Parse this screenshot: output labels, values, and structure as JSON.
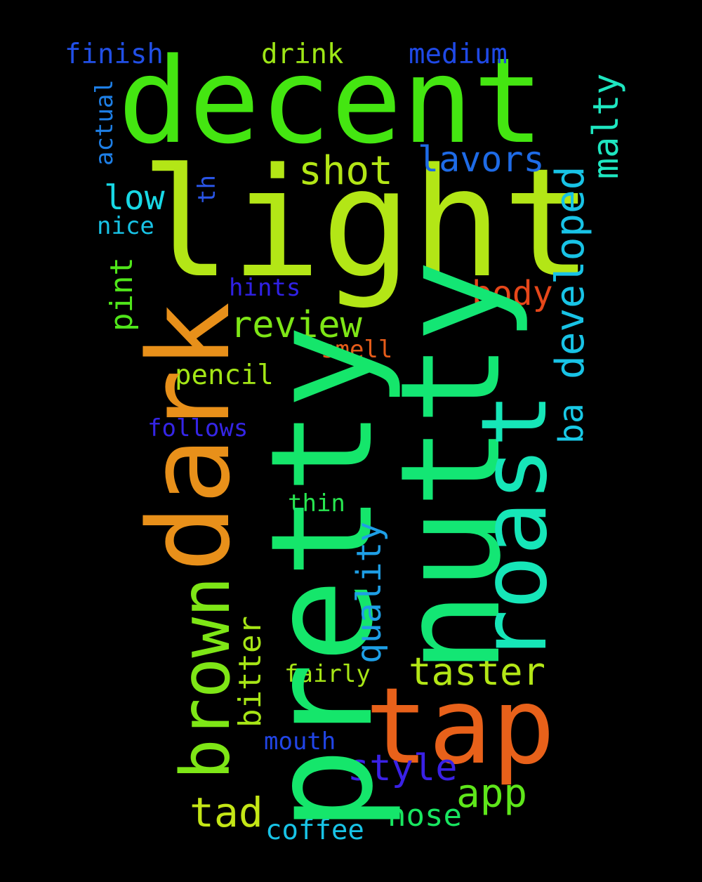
{
  "words": [
    {
      "key": "decent",
      "text": "decent",
      "color": "#44e611",
      "orientation": "horizontal"
    },
    {
      "key": "light",
      "text": "light",
      "color": "#b3e616",
      "orientation": "horizontal"
    },
    {
      "key": "pretty",
      "text": "pretty",
      "color": "#15e66b",
      "orientation": "vertical"
    },
    {
      "key": "nutty",
      "text": "nutty",
      "color": "#13e674",
      "orientation": "vertical"
    },
    {
      "key": "dark",
      "text": "dark",
      "color": "#e8901a",
      "orientation": "vertical"
    },
    {
      "key": "roast",
      "text": "roast",
      "color": "#16e6b8",
      "orientation": "vertical"
    },
    {
      "key": "tap",
      "text": "tap",
      "color": "#e8611a",
      "orientation": "horizontal"
    },
    {
      "key": "brown",
      "text": "brown",
      "color": "#7ee616",
      "orientation": "vertical"
    },
    {
      "key": "lavors",
      "text": "lavors",
      "color": "#1e6be6",
      "orientation": "horizontal"
    },
    {
      "key": "shot",
      "text": "shot",
      "color": "#b3e616",
      "orientation": "horizontal"
    },
    {
      "key": "developed",
      "text": "developed",
      "color": "#18c3e6",
      "orientation": "vertical"
    },
    {
      "key": "malty",
      "text": "malty",
      "color": "#1ee6c0",
      "orientation": "vertical"
    },
    {
      "key": "review",
      "text": "review",
      "color": "#7ee616",
      "orientation": "horizontal"
    },
    {
      "key": "body",
      "text": "body",
      "color": "#e6471a",
      "orientation": "horizontal"
    },
    {
      "key": "taster",
      "text": "taster",
      "color": "#b3e616",
      "orientation": "horizontal"
    },
    {
      "key": "quality",
      "text": "quality",
      "color": "#1e9fe6",
      "orientation": "vertical"
    },
    {
      "key": "style",
      "text": "style",
      "color": "#3a21e6",
      "orientation": "horizontal"
    },
    {
      "key": "app",
      "text": "app",
      "color": "#5ee61a",
      "orientation": "horizontal"
    },
    {
      "key": "tad",
      "text": "tad",
      "color": "#c4e616",
      "orientation": "horizontal"
    },
    {
      "key": "nose",
      "text": "nose",
      "color": "#18e660",
      "orientation": "horizontal"
    },
    {
      "key": "low",
      "text": "low",
      "color": "#18d9e6",
      "orientation": "horizontal"
    },
    {
      "key": "bitter",
      "text": "bitter",
      "color": "#a7e616",
      "orientation": "vertical"
    },
    {
      "key": "pint",
      "text": "pint",
      "color": "#50e61a",
      "orientation": "vertical"
    },
    {
      "key": "ba",
      "text": "ba",
      "color": "#18c9e6",
      "orientation": "vertical"
    },
    {
      "key": "finish",
      "text": "finish",
      "color": "#214fe6",
      "orientation": "horizontal"
    },
    {
      "key": "drink",
      "text": "drink",
      "color": "#9de616",
      "orientation": "horizontal"
    },
    {
      "key": "medium",
      "text": "medium",
      "color": "#1f49e6",
      "orientation": "horizontal"
    },
    {
      "key": "pencil",
      "text": "pencil",
      "color": "#a3e616",
      "orientation": "horizontal"
    },
    {
      "key": "coffee",
      "text": "coffee",
      "color": "#18c3e6",
      "orientation": "horizontal"
    },
    {
      "key": "hints",
      "text": "hints",
      "color": "#3021e6",
      "orientation": "horizontal"
    },
    {
      "key": "smell",
      "text": "smell",
      "color": "#e65c1a",
      "orientation": "horizontal"
    },
    {
      "key": "follows",
      "text": "follows",
      "color": "#3525e6",
      "orientation": "horizontal"
    },
    {
      "key": "thin",
      "text": "thin",
      "color": "#28e650",
      "orientation": "horizontal"
    },
    {
      "key": "fairly",
      "text": "fairly",
      "color": "#a7e616",
      "orientation": "horizontal"
    },
    {
      "key": "mouth",
      "text": "mouth",
      "color": "#2145e6",
      "orientation": "horizontal"
    },
    {
      "key": "nice",
      "text": "nice",
      "color": "#18c3e6",
      "orientation": "horizontal"
    },
    {
      "key": "actual",
      "text": "actual",
      "color": "#1e7fe6",
      "orientation": "vertical"
    },
    {
      "key": "th",
      "text": "th",
      "color": "#2a55e6",
      "orientation": "vertical"
    }
  ]
}
